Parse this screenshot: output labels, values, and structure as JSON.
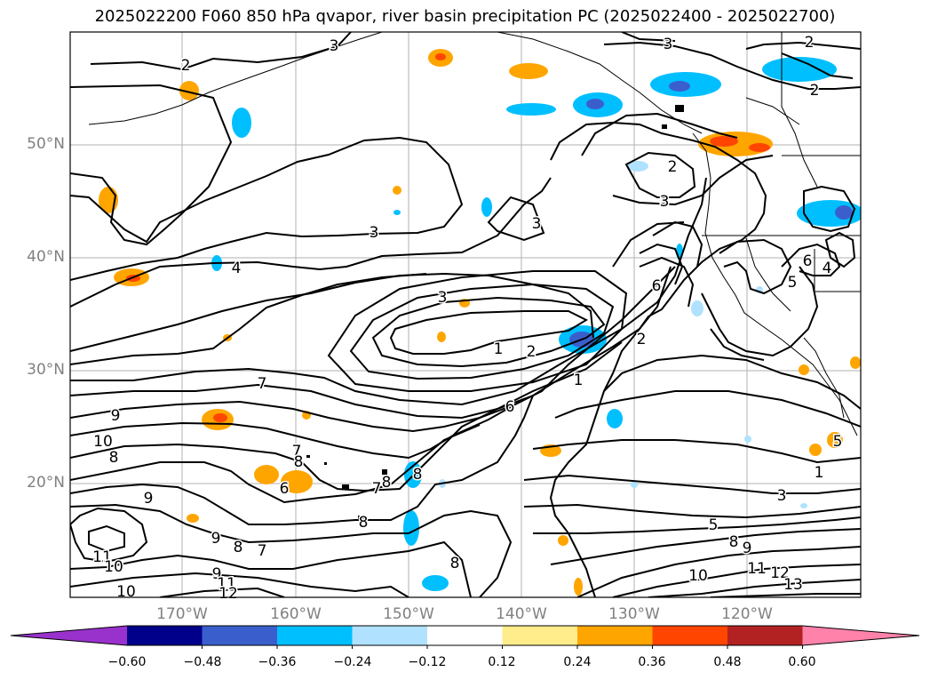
{
  "title": "2025022200 F060 850 hPa qvapor, river basin precipitation PC (2025022400 - 2025022700)",
  "lat_labels": [
    "50°N",
    "40°N",
    "30°N",
    "20°N"
  ],
  "lon_labels": [
    "170°W",
    "160°W",
    "150°W",
    "140°W",
    "130°W",
    "120°W"
  ],
  "colorbar": {
    "colors": [
      "#9932cc",
      "#00008b",
      "#3a5fcd",
      "#00bfff",
      "#b0e2ff",
      "#ffffff",
      "#ffec8b",
      "#ffa500",
      "#ff4500",
      "#b22222",
      "#ff82ab"
    ],
    "tick_labels": [
      "−0.60",
      "−0.48",
      "−0.36",
      "−0.24",
      "−0.12",
      "0.12",
      "0.24",
      "0.36",
      "0.48",
      "0.60"
    ]
  },
  "contour_labels": [
    "2",
    "3",
    "2",
    "3",
    "2",
    "3",
    "3",
    "2",
    "3",
    "4",
    "4",
    "3",
    "6",
    "5",
    "6",
    "2",
    "1",
    "2",
    "1",
    "7",
    "6",
    "9",
    "10",
    "8",
    "7",
    "8",
    "6",
    "7",
    "8",
    "8",
    "9",
    "8",
    "9",
    "8",
    "7",
    "11",
    "10",
    "9",
    "11",
    "10",
    "8",
    "1",
    "5",
    "3",
    "5",
    "8",
    "9",
    "10",
    "11",
    "12",
    "13",
    "12"
  ]
}
